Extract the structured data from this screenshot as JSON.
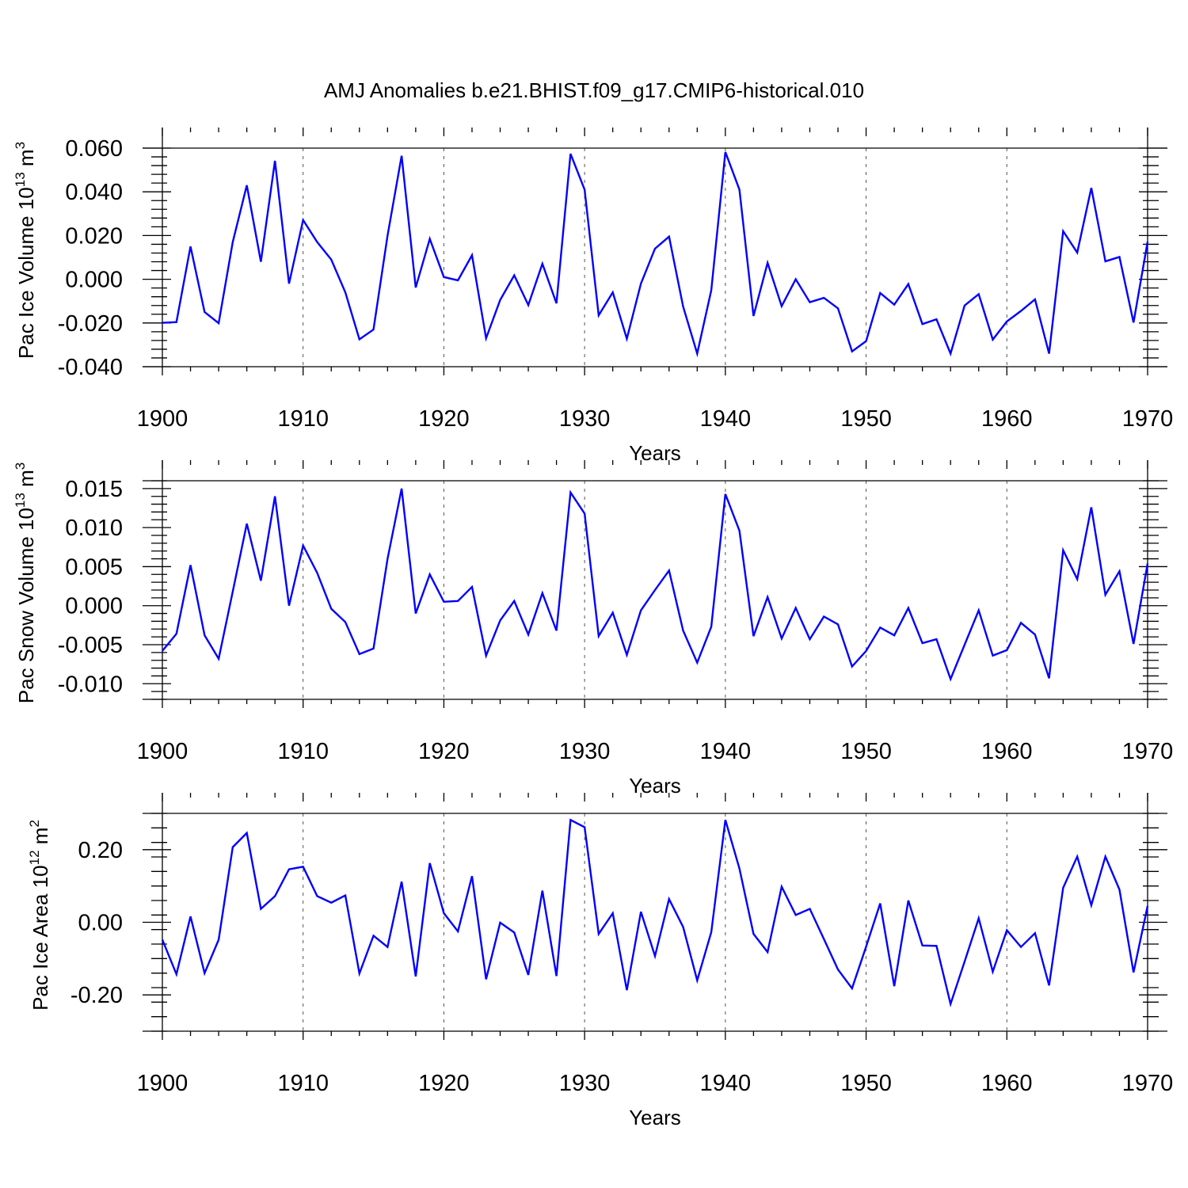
{
  "title": "AMJ Anomalies b.e21.BHIST.f09_g17.CMIP6-historical.010",
  "line_color": "#0000ff",
  "chart_data": [
    {
      "type": "line",
      "ylabel_main": "Pac Ice Volume 10",
      "ylabel_exp": "13",
      "ylabel_unit": " m",
      "ylabel_unit_exp": "3",
      "xlabel": "Years",
      "xlim": [
        1900,
        1970
      ],
      "ylim": [
        -0.04,
        0.06
      ],
      "yticks": [
        -0.04,
        -0.02,
        0.0,
        0.02,
        0.04,
        0.06
      ],
      "ytick_labels": [
        "-0.040",
        "-0.020",
        "0.000",
        "0.020",
        "0.040",
        "0.060"
      ],
      "xticks": [
        1900,
        1910,
        1920,
        1930,
        1940,
        1950,
        1960,
        1970
      ],
      "xtick_labels": [
        "1900",
        "1910",
        "1920",
        "1930",
        "1940",
        "1950",
        "1960",
        "1970"
      ],
      "gridlines_x": [
        1910,
        1920,
        1930,
        1940,
        1950,
        1960
      ],
      "x_start": 1900,
      "values": [
        -0.0199,
        -0.0196,
        0.015,
        -0.015,
        -0.0201,
        0.017,
        0.043,
        0.008,
        0.0542,
        -0.002,
        0.0271,
        0.017,
        0.009,
        -0.006,
        -0.0275,
        -0.023,
        0.02,
        0.0565,
        -0.0038,
        0.0185,
        0.001,
        -0.0005,
        0.011,
        -0.027,
        -0.0095,
        0.0018,
        -0.0118,
        0.0071,
        -0.011,
        0.0574,
        0.041,
        -0.0165,
        -0.006,
        -0.0272,
        -0.002,
        0.014,
        0.0195,
        -0.0125,
        -0.034,
        -0.005,
        0.0582,
        0.041,
        -0.0168,
        0.0075,
        -0.0123,
        0.0,
        -0.0105,
        -0.0085,
        -0.0133,
        -0.033,
        -0.0283,
        -0.0063,
        -0.0116,
        -0.0022,
        -0.0205,
        -0.0183,
        -0.034,
        -0.012,
        -0.0068,
        -0.0276,
        -0.0193,
        -0.0145,
        -0.0092,
        -0.034,
        0.022,
        0.0122,
        0.0418,
        0.0082,
        0.0102,
        -0.0198,
        0.0172
      ]
    },
    {
      "type": "line",
      "ylabel_main": "Pac Snow Volume 10",
      "ylabel_exp": "13",
      "ylabel_unit": " m",
      "ylabel_unit_exp": "3",
      "xlabel": "Years",
      "xlim": [
        1900,
        1970
      ],
      "ylim": [
        -0.012,
        0.016
      ],
      "yticks": [
        -0.01,
        -0.005,
        0.0,
        0.005,
        0.01,
        0.015
      ],
      "ytick_labels": [
        "-0.010",
        "-0.005",
        "0.000",
        "0.005",
        "0.010",
        "0.015"
      ],
      "xticks": [
        1900,
        1910,
        1920,
        1930,
        1940,
        1950,
        1960,
        1970
      ],
      "xtick_labels": [
        "1900",
        "1910",
        "1920",
        "1930",
        "1940",
        "1950",
        "1960",
        "1970"
      ],
      "gridlines_x": [
        1910,
        1920,
        1930,
        1940,
        1950,
        1960
      ],
      "x_start": 1900,
      "values": [
        -0.0058,
        -0.0036,
        0.0052,
        -0.0038,
        -0.0068,
        0.0018,
        0.0105,
        0.0032,
        0.014,
        0.0,
        0.0077,
        0.0042,
        -0.0004,
        -0.0021,
        -0.0062,
        -0.0055,
        0.006,
        0.015,
        -0.001,
        0.004,
        0.0005,
        0.0006,
        0.0024,
        -0.0064,
        -0.0019,
        0.0006,
        -0.0037,
        0.0016,
        -0.0032,
        0.0145,
        0.0118,
        -0.0039,
        -0.0009,
        -0.0063,
        -0.0006,
        0.002,
        0.0045,
        -0.0032,
        -0.0073,
        -0.0027,
        0.0143,
        0.0096,
        -0.0039,
        0.0011,
        -0.0042,
        -0.0003,
        -0.0043,
        -0.0014,
        -0.0024,
        -0.0078,
        -0.0058,
        -0.0028,
        -0.0038,
        -0.0003,
        -0.0048,
        -0.0043,
        -0.0094,
        -0.005,
        -0.0006,
        -0.0064,
        -0.0057,
        -0.0022,
        -0.0037,
        -0.0093,
        0.0071,
        0.0034,
        0.0126,
        0.0014,
        0.0044,
        -0.0049,
        0.0054
      ]
    },
    {
      "type": "line",
      "ylabel_main": "Pac Ice Area 10",
      "ylabel_exp": "12",
      "ylabel_unit": " m",
      "ylabel_unit_exp": "2",
      "xlabel": "Years",
      "xlim": [
        1900,
        1970
      ],
      "ylim": [
        -0.3,
        0.3
      ],
      "yticks": [
        -0.2,
        0.0,
        0.2
      ],
      "ytick_labels": [
        "-0.20",
        "0.00",
        "0.20"
      ],
      "xticks": [
        1900,
        1910,
        1920,
        1930,
        1940,
        1950,
        1960,
        1970
      ],
      "xtick_labels": [
        "1900",
        "1910",
        "1920",
        "1930",
        "1940",
        "1950",
        "1960",
        "1970"
      ],
      "gridlines_x": [
        1910,
        1920,
        1930,
        1940,
        1950,
        1960
      ],
      "x_start": 1900,
      "values": [
        -0.048,
        -0.143,
        0.016,
        -0.14,
        -0.048,
        0.207,
        0.246,
        0.037,
        0.072,
        0.146,
        0.153,
        0.072,
        0.054,
        0.074,
        -0.141,
        -0.037,
        -0.068,
        0.112,
        -0.149,
        0.163,
        0.025,
        -0.025,
        0.127,
        -0.157,
        -0.001,
        -0.028,
        -0.145,
        0.087,
        -0.148,
        0.282,
        0.262,
        -0.032,
        0.025,
        -0.187,
        0.029,
        -0.093,
        0.064,
        -0.013,
        -0.16,
        -0.027,
        0.282,
        0.148,
        -0.032,
        -0.082,
        0.098,
        0.02,
        0.037,
        -0.046,
        -0.13,
        -0.182,
        -0.067,
        0.052,
        -0.176,
        0.06,
        -0.064,
        -0.065,
        -0.225,
        -0.108,
        0.011,
        -0.136,
        -0.022,
        -0.068,
        -0.03,
        -0.174,
        0.095,
        0.181,
        0.047,
        0.181,
        0.09,
        -0.138,
        0.045
      ]
    }
  ]
}
